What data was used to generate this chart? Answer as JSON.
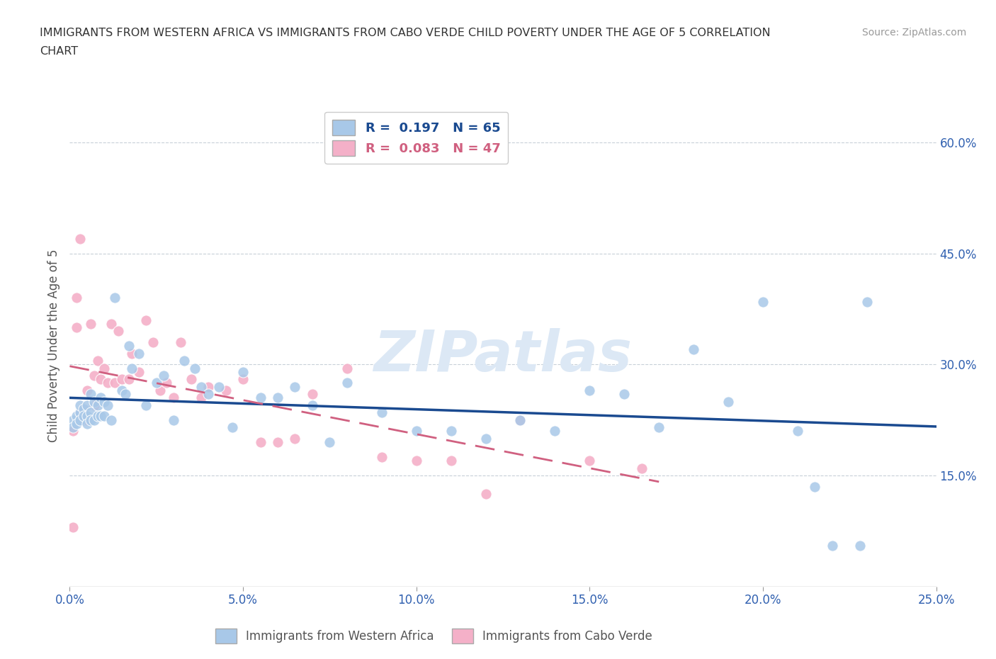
{
  "title_line1": "IMMIGRANTS FROM WESTERN AFRICA VS IMMIGRANTS FROM CABO VERDE CHILD POVERTY UNDER THE AGE OF 5 CORRELATION",
  "title_line2": "CHART",
  "source_text": "Source: ZipAtlas.com",
  "ylabel": "Child Poverty Under the Age of 5",
  "xlim": [
    0.0,
    0.25
  ],
  "ylim": [
    0.0,
    0.65
  ],
  "xticks": [
    0.0,
    0.05,
    0.1,
    0.15,
    0.2,
    0.25
  ],
  "yticks_right": [
    0.15,
    0.3,
    0.45,
    0.6
  ],
  "R_blue": 0.197,
  "N_blue": 65,
  "R_pink": 0.083,
  "N_pink": 47,
  "blue_color": "#a8c8e8",
  "pink_color": "#f4b0c8",
  "trend_blue": "#1a4a90",
  "trend_pink": "#d06080",
  "watermark": "ZIPatlas",
  "watermark_color": "#dce8f5",
  "background_color": "#ffffff",
  "legend_label_blue": "Immigrants from Western Africa",
  "legend_label_pink": "Immigrants from Cabo Verde",
  "blue_scatter_x": [
    0.001,
    0.001,
    0.002,
    0.002,
    0.003,
    0.003,
    0.003,
    0.004,
    0.004,
    0.005,
    0.005,
    0.005,
    0.006,
    0.006,
    0.006,
    0.007,
    0.007,
    0.008,
    0.008,
    0.009,
    0.009,
    0.01,
    0.01,
    0.011,
    0.012,
    0.013,
    0.015,
    0.016,
    0.017,
    0.018,
    0.02,
    0.022,
    0.025,
    0.027,
    0.03,
    0.033,
    0.036,
    0.038,
    0.04,
    0.043,
    0.047,
    0.05,
    0.055,
    0.06,
    0.065,
    0.07,
    0.075,
    0.08,
    0.09,
    0.1,
    0.11,
    0.12,
    0.13,
    0.14,
    0.15,
    0.16,
    0.17,
    0.18,
    0.19,
    0.2,
    0.21,
    0.215,
    0.22,
    0.228,
    0.23
  ],
  "blue_scatter_y": [
    0.225,
    0.215,
    0.23,
    0.22,
    0.235,
    0.245,
    0.225,
    0.24,
    0.23,
    0.245,
    0.23,
    0.22,
    0.26,
    0.235,
    0.225,
    0.25,
    0.225,
    0.245,
    0.23,
    0.255,
    0.23,
    0.25,
    0.23,
    0.245,
    0.225,
    0.39,
    0.265,
    0.26,
    0.325,
    0.295,
    0.315,
    0.245,
    0.275,
    0.285,
    0.225,
    0.305,
    0.295,
    0.27,
    0.26,
    0.27,
    0.215,
    0.29,
    0.255,
    0.255,
    0.27,
    0.245,
    0.195,
    0.275,
    0.235,
    0.21,
    0.21,
    0.2,
    0.225,
    0.21,
    0.265,
    0.26,
    0.215,
    0.32,
    0.25,
    0.385,
    0.21,
    0.135,
    0.055,
    0.055,
    0.385
  ],
  "pink_scatter_x": [
    0.001,
    0.001,
    0.002,
    0.002,
    0.003,
    0.003,
    0.004,
    0.004,
    0.005,
    0.005,
    0.006,
    0.007,
    0.007,
    0.008,
    0.009,
    0.01,
    0.011,
    0.012,
    0.013,
    0.014,
    0.015,
    0.017,
    0.018,
    0.02,
    0.022,
    0.024,
    0.026,
    0.028,
    0.03,
    0.032,
    0.035,
    0.038,
    0.04,
    0.045,
    0.05,
    0.055,
    0.06,
    0.065,
    0.07,
    0.08,
    0.09,
    0.1,
    0.11,
    0.12,
    0.13,
    0.15,
    0.165
  ],
  "pink_scatter_y": [
    0.21,
    0.08,
    0.39,
    0.35,
    0.235,
    0.47,
    0.24,
    0.225,
    0.265,
    0.225,
    0.355,
    0.245,
    0.285,
    0.305,
    0.28,
    0.295,
    0.275,
    0.355,
    0.275,
    0.345,
    0.28,
    0.28,
    0.315,
    0.29,
    0.36,
    0.33,
    0.265,
    0.275,
    0.255,
    0.33,
    0.28,
    0.255,
    0.27,
    0.265,
    0.28,
    0.195,
    0.195,
    0.2,
    0.26,
    0.295,
    0.175,
    0.17,
    0.17,
    0.125,
    0.225,
    0.17,
    0.16
  ]
}
